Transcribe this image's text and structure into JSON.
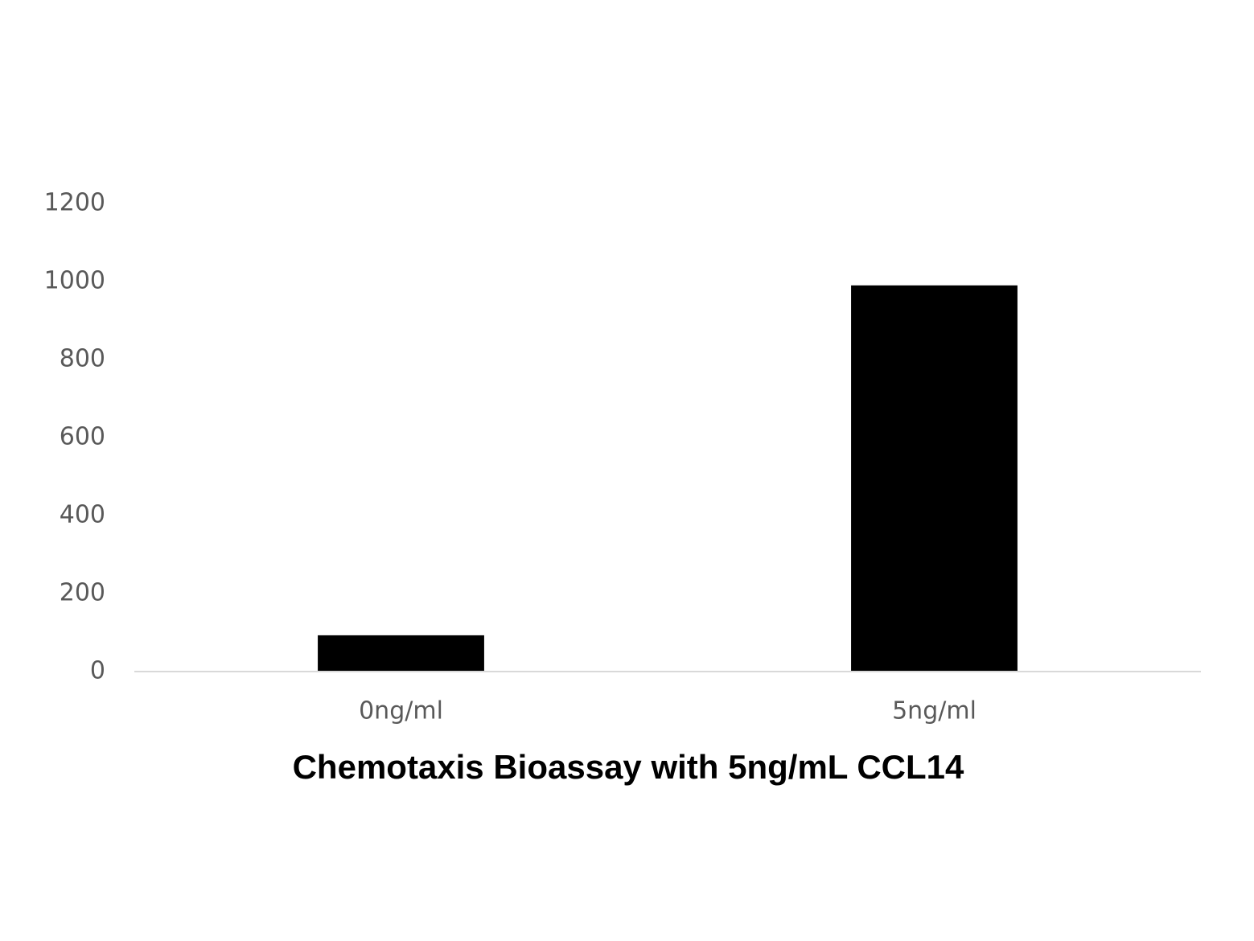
{
  "chart_data": {
    "type": "bar",
    "title": "Chemotaxis Bioassay with 5ng/mL CCL14",
    "categories": [
      "0ng/ml",
      "5ng/ml"
    ],
    "values": [
      93,
      990
    ],
    "color": "#000000",
    "ylim": [
      0,
      1200
    ],
    "yticks": [
      0,
      200,
      400,
      600,
      800,
      1000,
      1200
    ],
    "grid": false
  }
}
